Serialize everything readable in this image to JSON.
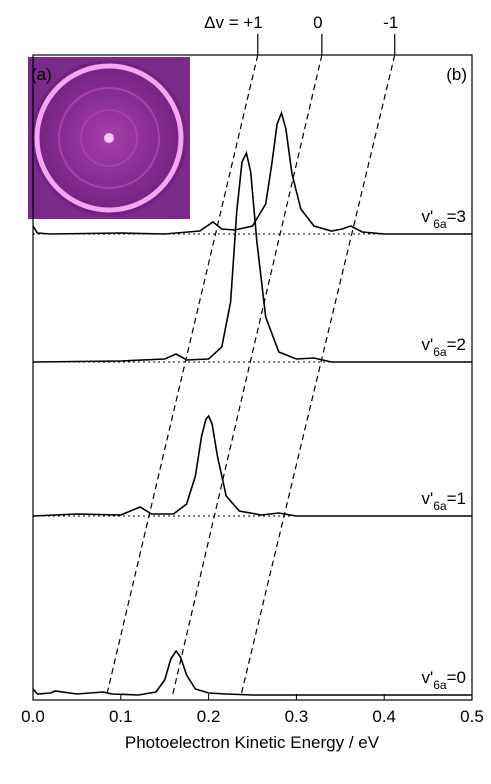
{
  "chart_data": {
    "type": "line",
    "xlabel": "Photoelectron Kinetic Energy / eV",
    "xlim": [
      0,
      0.5
    ],
    "xticks": [
      {
        "value": 0,
        "label": "0.0"
      },
      0.1,
      0.2,
      0.3,
      0.4,
      0.5
    ],
    "panel_labels": [
      "(a)",
      "(b)"
    ],
    "guides": [
      {
        "label": "Δv = +1",
        "x": [
          0.256,
          0.084
        ]
      },
      {
        "label": "0",
        "x": [
          0.329,
          0.159
        ]
      },
      {
        "label": "-1",
        "x": [
          0.412,
          0.237
        ]
      }
    ],
    "series": [
      {
        "name": [
          "v'",
          "6a",
          "=3"
        ],
        "color": "#000000",
        "x": [
          0,
          0.005,
          0.02,
          0.1,
          0.15,
          0.19,
          0.205,
          0.215,
          0.23,
          0.25,
          0.265,
          0.272,
          0.278,
          0.283,
          0.288,
          0.295,
          0.305,
          0.32,
          0.34,
          0.352,
          0.362,
          0.375,
          0.4,
          0.45,
          0.5
        ],
        "values": [
          8,
          1,
          0,
          1,
          0,
          3,
          12,
          5,
          4,
          8,
          30,
          70,
          110,
          121,
          105,
          60,
          25,
          8,
          3,
          5,
          8,
          2,
          0,
          0,
          0
        ]
      },
      {
        "name": [
          "v'",
          "6a",
          "=2"
        ],
        "color": "#000000",
        "x": [
          0,
          0.1,
          0.15,
          0.163,
          0.175,
          0.2,
          0.215,
          0.225,
          0.232,
          0.238,
          0.243,
          0.248,
          0.255,
          0.265,
          0.28,
          0.3,
          0.32,
          0.34,
          0.4,
          0.5
        ],
        "values": [
          0,
          1,
          3,
          8,
          2,
          3,
          15,
          60,
          150,
          200,
          209,
          190,
          120,
          45,
          10,
          3,
          4,
          0,
          0,
          0
        ]
      },
      {
        "name": [
          "v'",
          "6a",
          "=1"
        ],
        "color": "#000000",
        "x": [
          0,
          0.05,
          0.1,
          0.122,
          0.135,
          0.16,
          0.175,
          0.185,
          0.192,
          0.197,
          0.2,
          0.204,
          0.21,
          0.22,
          0.235,
          0.26,
          0.28,
          0.3,
          0.4,
          0.5
        ],
        "values": [
          0,
          2,
          1,
          9,
          2,
          2,
          12,
          40,
          80,
          97,
          100,
          92,
          60,
          20,
          5,
          1,
          3,
          0,
          0,
          0
        ]
      },
      {
        "name": [
          "v'",
          "6a",
          "=0"
        ],
        "color": "#000000",
        "x": [
          0,
          0.005,
          0.02,
          0.025,
          0.05,
          0.08,
          0.09,
          0.12,
          0.14,
          0.15,
          0.157,
          0.163,
          0.168,
          0.175,
          0.185,
          0.2,
          0.22,
          0.25,
          0.3,
          0.5
        ],
        "values": [
          6,
          1,
          2,
          4,
          1,
          3,
          1,
          0,
          3,
          15,
          36,
          44,
          38,
          20,
          6,
          2,
          1,
          0,
          0,
          0
        ]
      }
    ]
  }
}
